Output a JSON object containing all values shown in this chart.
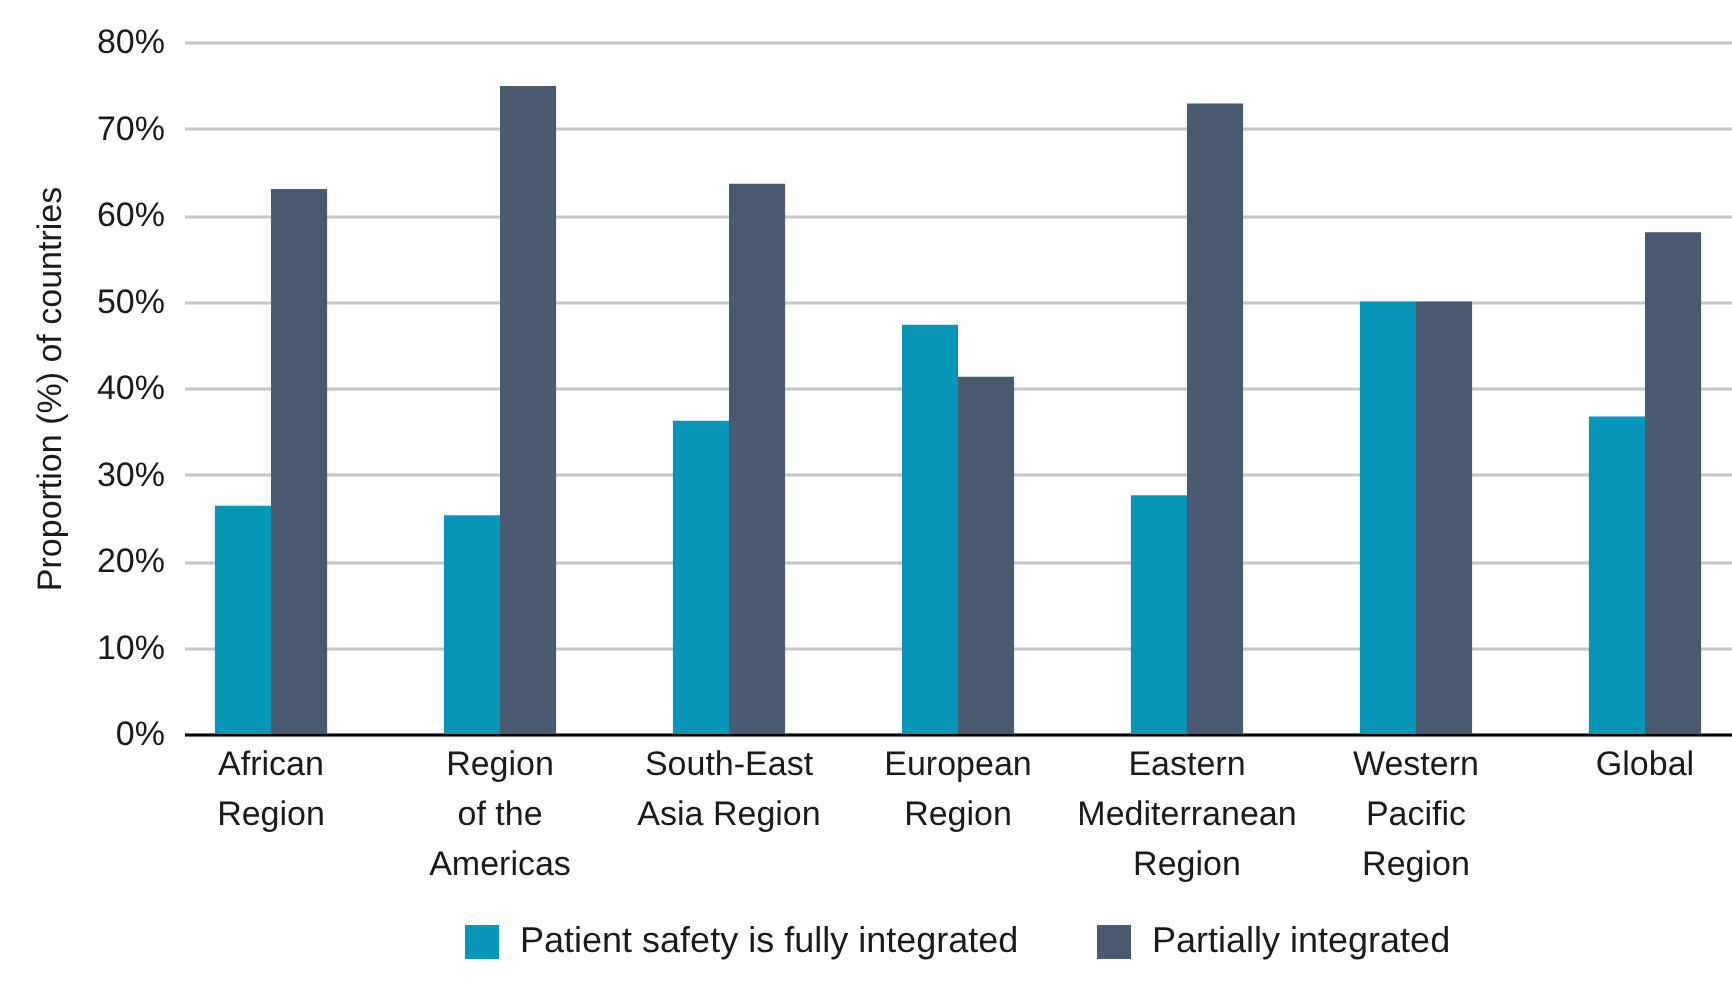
{
  "chart_data": {
    "type": "bar",
    "ylabel": "Proportion (%) of countries",
    "categories": [
      "African\nRegion",
      "Region\nof the\nAmericas",
      "South-East\nAsia Region",
      "European\nRegion",
      "Eastern\nMediterranean\nRegion",
      "Western\nPacific\nRegion",
      "Global"
    ],
    "series": [
      {
        "name": "Patient safety is fully integrated",
        "color": "#0796b8",
        "values": [
          26.4,
          25.3,
          36.2,
          47.3,
          27.6,
          50,
          36.7
        ]
      },
      {
        "name": "Partially integrated",
        "color": "#4a5a70",
        "values": [
          63.0,
          74.9,
          63.6,
          41.3,
          72.9,
          50,
          58.0
        ]
      }
    ],
    "ylim": [
      0,
      80
    ],
    "yticks": [
      {
        "value": 0,
        "label": "0%"
      },
      {
        "value": 10,
        "label": "10%"
      },
      {
        "value": 20,
        "label": "20%"
      },
      {
        "value": 30,
        "label": "30%"
      },
      {
        "value": 40,
        "label": "40%"
      },
      {
        "value": 50,
        "label": "50%"
      },
      {
        "value": 60,
        "label": "60%"
      },
      {
        "value": 70,
        "label": "70%"
      },
      {
        "value": 80,
        "label": "80%"
      }
    ],
    "grid": "y",
    "legend": "bottom"
  }
}
